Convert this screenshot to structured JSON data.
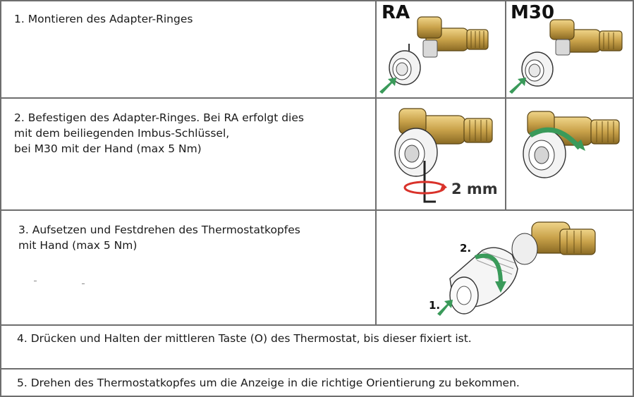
{
  "steps": {
    "s1": {
      "text": "1. Montieren des Adapter-Ringes"
    },
    "s2": {
      "line1": "2. Befestigen des Adapter-Ringes. Bei RA erfolgt dies",
      "line2": "mit dem beiliegenden Imbus-Schlüssel,",
      "line3": "bei M30 mit der Hand (max 5 Nm)"
    },
    "s3": {
      "line1": "3. Aufsetzen und Festdrehen des Thermostatkopfes",
      "line2": "mit Hand (max 5 Nm)"
    },
    "s4": {
      "text": "4. Drücken und Halten der mittleren Taste (O) des Thermostat, bis dieser fixiert ist."
    },
    "s5": {
      "text": "5. Drehen des Thermostatkopfes um die Anzeige in die richtige Orientierung zu bekommen."
    }
  },
  "illustrations": {
    "label_ra": "RA",
    "label_m30": "M30",
    "label_2mm": "2 mm",
    "label_step1": "1.",
    "label_step2": "2."
  },
  "colors": {
    "brass": "#c9a24a",
    "arrow_green": "#3a9a5a",
    "rotate_red": "#d9322a",
    "grid": "#6e6e6e"
  }
}
